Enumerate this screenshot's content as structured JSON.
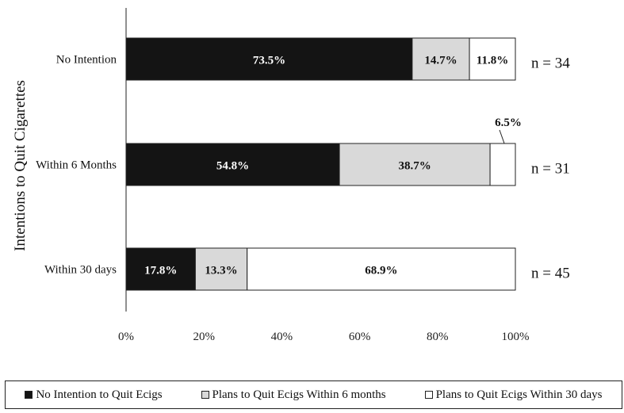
{
  "chart_data": {
    "type": "bar",
    "orientation": "horizontal",
    "stacked": true,
    "title": "",
    "ylabel": "Intentions to Quit Cigarettes",
    "xlabel": "",
    "categories": [
      "No Intention",
      "Within 6 Months",
      "Within 30 days"
    ],
    "series": [
      {
        "name": "No Intention to Quit Ecigs",
        "values": [
          73.5,
          54.8,
          17.8
        ],
        "color": "#141414",
        "label_color": "#ffffff"
      },
      {
        "name": "Plans to Quit Ecigs Within 6 months",
        "values": [
          14.7,
          38.7,
          13.3
        ],
        "color": "#d9d9d9",
        "label_color": "#111111"
      },
      {
        "name": "Plans to Quit Ecigs Within 30 days",
        "values": [
          11.8,
          6.5,
          68.9
        ],
        "color": "#ffffff",
        "label_color": "#111111"
      }
    ],
    "data_labels": [
      [
        "73.5%",
        "14.7%",
        "11.8%"
      ],
      [
        "54.8%",
        "38.7%",
        "6.5%"
      ],
      [
        "17.8%",
        "13.3%",
        "68.9%"
      ]
    ],
    "n_labels": [
      "n = 34",
      "n = 31",
      "n = 45"
    ],
    "xlim": [
      0,
      100
    ],
    "xticks": [
      "0%",
      "20%",
      "40%",
      "60%",
      "80%",
      "100%"
    ],
    "grid": false,
    "legend_position": "bottom"
  }
}
